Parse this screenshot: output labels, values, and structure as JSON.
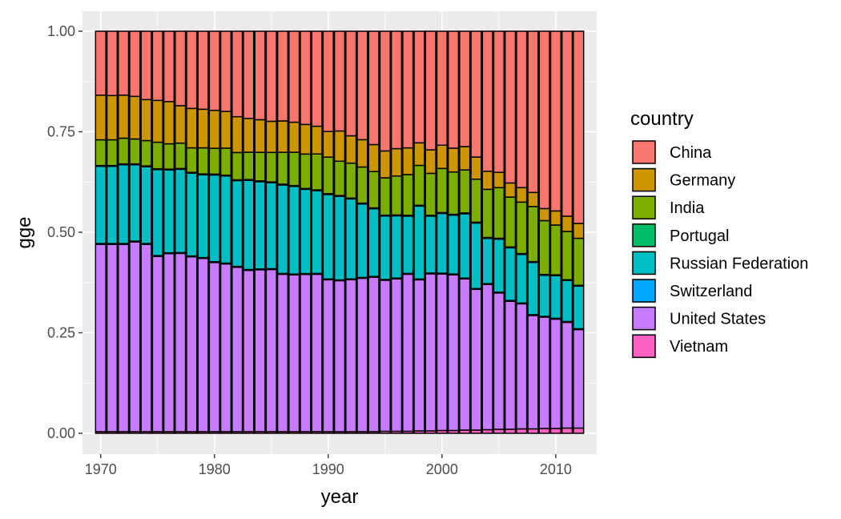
{
  "chart_data": {
    "type": "bar",
    "stacked": "fill",
    "xlabel": "year",
    "ylabel": "gge",
    "ylim": [
      0,
      1
    ],
    "x_ticks": [
      "1970",
      "1980",
      "1990",
      "2000",
      "2010"
    ],
    "y_ticks": [
      "0.00",
      "0.25",
      "0.50",
      "0.75",
      "1.00"
    ],
    "grid": true,
    "legend": {
      "title": "country",
      "position": "right"
    },
    "x": [
      1970,
      1971,
      1972,
      1973,
      1974,
      1975,
      1976,
      1977,
      1978,
      1979,
      1980,
      1981,
      1982,
      1983,
      1984,
      1985,
      1986,
      1987,
      1988,
      1989,
      1990,
      1991,
      1992,
      1993,
      1994,
      1995,
      1996,
      1997,
      1998,
      1999,
      2000,
      2001,
      2002,
      2003,
      2004,
      2005,
      2006,
      2007,
      2008,
      2009,
      2010,
      2011,
      2012
    ],
    "series": [
      {
        "name": "Vietnam",
        "color": "#FF61C3",
        "values": [
          0.004,
          0.004,
          0.004,
          0.004,
          0.004,
          0.004,
          0.004,
          0.004,
          0.004,
          0.004,
          0.004,
          0.004,
          0.004,
          0.004,
          0.004,
          0.004,
          0.004,
          0.004,
          0.004,
          0.004,
          0.004,
          0.004,
          0.004,
          0.004,
          0.004,
          0.005,
          0.005,
          0.005,
          0.006,
          0.006,
          0.007,
          0.007,
          0.008,
          0.008,
          0.009,
          0.01,
          0.01,
          0.011,
          0.011,
          0.012,
          0.012,
          0.013,
          0.013
        ]
      },
      {
        "name": "United States",
        "color": "#C77CFF",
        "values": [
          0.466,
          0.466,
          0.466,
          0.472,
          0.466,
          0.436,
          0.443,
          0.443,
          0.435,
          0.431,
          0.419,
          0.416,
          0.404,
          0.396,
          0.397,
          0.396,
          0.386,
          0.386,
          0.388,
          0.386,
          0.374,
          0.374,
          0.378,
          0.382,
          0.383,
          0.376,
          0.379,
          0.389,
          0.375,
          0.389,
          0.39,
          0.386,
          0.376,
          0.35,
          0.362,
          0.339,
          0.318,
          0.311,
          0.282,
          0.277,
          0.272,
          0.263,
          0.245
        ]
      },
      {
        "name": "Switzerland",
        "color": "#00A9FF",
        "values": [
          0.002,
          0.002,
          0.002,
          0.002,
          0.002,
          0.002,
          0.002,
          0.002,
          0.002,
          0.002,
          0.002,
          0.002,
          0.002,
          0.002,
          0.002,
          0.002,
          0.002,
          0.002,
          0.002,
          0.002,
          0.002,
          0.002,
          0.002,
          0.002,
          0.002,
          0.002,
          0.002,
          0.002,
          0.002,
          0.002,
          0.002,
          0.002,
          0.002,
          0.002,
          0.002,
          0.002,
          0.002,
          0.002,
          0.002,
          0.002,
          0.002,
          0.002,
          0.002
        ]
      },
      {
        "name": "Russian Federation",
        "color": "#00BFC4",
        "values": [
          0.192,
          0.192,
          0.196,
          0.19,
          0.191,
          0.214,
          0.206,
          0.207,
          0.206,
          0.206,
          0.215,
          0.216,
          0.211,
          0.219,
          0.214,
          0.21,
          0.217,
          0.216,
          0.208,
          0.203,
          0.208,
          0.207,
          0.199,
          0.183,
          0.168,
          0.158,
          0.155,
          0.142,
          0.181,
          0.141,
          0.149,
          0.146,
          0.16,
          0.163,
          0.113,
          0.132,
          0.131,
          0.121,
          0.13,
          0.102,
          0.106,
          0.102,
          0.106
        ]
      },
      {
        "name": "Portugal",
        "color": "#00BE67",
        "values": [
          0.002,
          0.002,
          0.002,
          0.002,
          0.002,
          0.002,
          0.002,
          0.002,
          0.002,
          0.002,
          0.002,
          0.002,
          0.002,
          0.002,
          0.002,
          0.002,
          0.002,
          0.002,
          0.002,
          0.002,
          0.002,
          0.002,
          0.002,
          0.002,
          0.002,
          0.002,
          0.002,
          0.002,
          0.002,
          0.002,
          0.002,
          0.002,
          0.002,
          0.002,
          0.002,
          0.002,
          0.002,
          0.002,
          0.002,
          0.002,
          0.002,
          0.002,
          0.002
        ]
      },
      {
        "name": "India",
        "color": "#7CAE00",
        "values": [
          0.064,
          0.064,
          0.064,
          0.062,
          0.063,
          0.066,
          0.063,
          0.063,
          0.061,
          0.065,
          0.064,
          0.067,
          0.067,
          0.067,
          0.07,
          0.072,
          0.078,
          0.082,
          0.085,
          0.088,
          0.09,
          0.085,
          0.087,
          0.09,
          0.09,
          0.093,
          0.097,
          0.101,
          0.099,
          0.104,
          0.11,
          0.105,
          0.107,
          0.107,
          0.12,
          0.126,
          0.124,
          0.128,
          0.137,
          0.134,
          0.124,
          0.12,
          0.117
        ]
      },
      {
        "name": "Germany",
        "color": "#CD9600",
        "values": [
          0.111,
          0.11,
          0.107,
          0.106,
          0.102,
          0.104,
          0.105,
          0.093,
          0.098,
          0.096,
          0.094,
          0.091,
          0.088,
          0.083,
          0.08,
          0.076,
          0.077,
          0.074,
          0.073,
          0.068,
          0.063,
          0.075,
          0.068,
          0.068,
          0.067,
          0.067,
          0.068,
          0.066,
          0.056,
          0.058,
          0.058,
          0.059,
          0.058,
          0.055,
          0.045,
          0.038,
          0.035,
          0.036,
          0.035,
          0.03,
          0.035,
          0.038,
          0.037
        ]
      },
      {
        "name": "China",
        "color": "#F8766D",
        "values": [
          0.159,
          0.16,
          0.159,
          0.162,
          0.17,
          0.172,
          0.175,
          0.185,
          0.192,
          0.194,
          0.196,
          0.199,
          0.21,
          0.214,
          0.217,
          0.22,
          0.22,
          0.224,
          0.23,
          0.233,
          0.247,
          0.247,
          0.26,
          0.27,
          0.281,
          0.298,
          0.292,
          0.289,
          0.277,
          0.294,
          0.284,
          0.29,
          0.287,
          0.313,
          0.349,
          0.351,
          0.377,
          0.389,
          0.401,
          0.441,
          0.447,
          0.46,
          0.478
        ]
      }
    ]
  }
}
